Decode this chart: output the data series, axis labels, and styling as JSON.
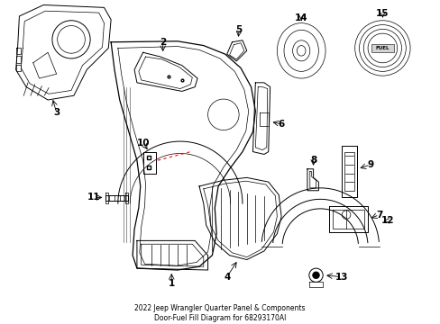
{
  "title": "2022 Jeep Wrangler Quarter Panel & Components\nDoor-Fuel Fill Diagram for 68293170AI",
  "background_color": "#ffffff",
  "line_color": "#000000",
  "label_fontsize": 7.5,
  "title_fontsize": 5.5
}
